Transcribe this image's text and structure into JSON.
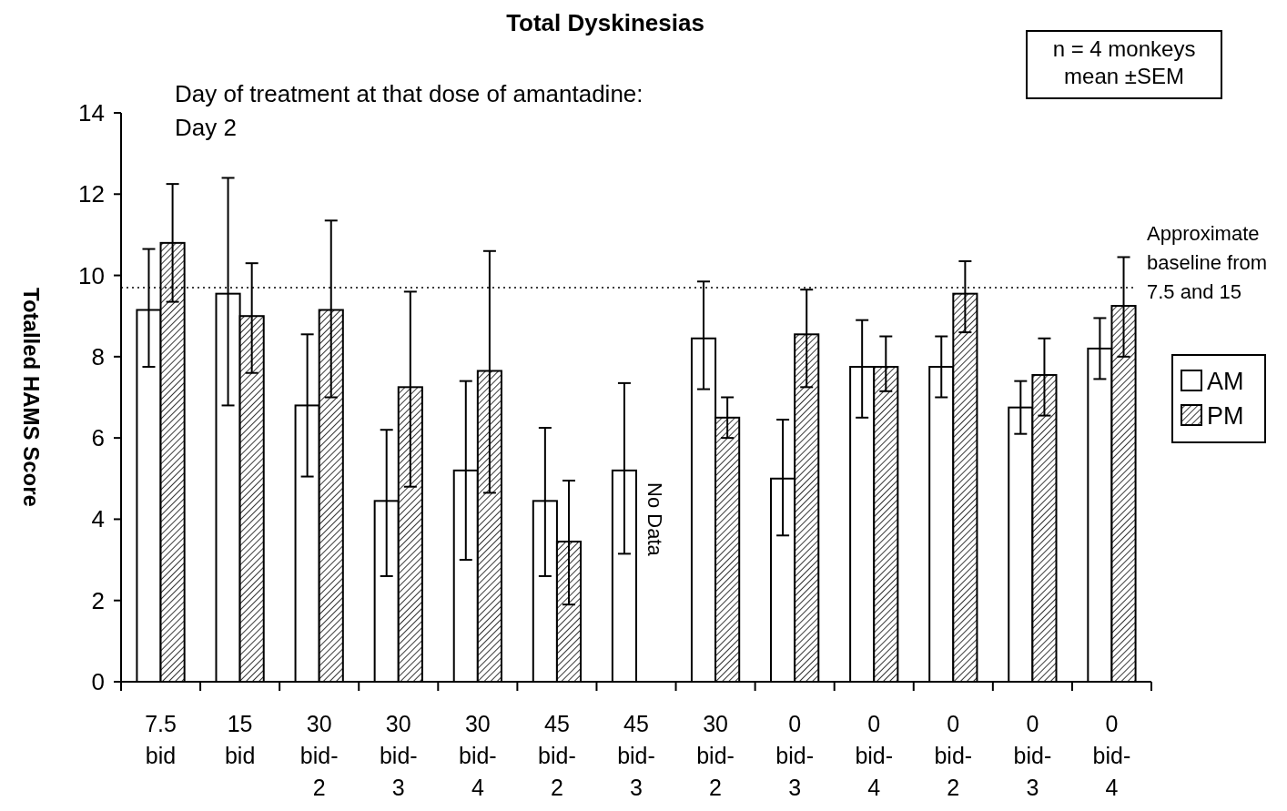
{
  "chart_data": {
    "type": "bar",
    "title": "Total Dyskinesias",
    "ylabel": "Totalled HAMS Score",
    "categories": [
      "7.5 bid",
      "15 bid",
      "30 bid-2",
      "30 bid-3",
      "30 bid-4",
      "45 bid-2",
      "45 bid-3",
      "30 bid-2",
      "0 bid-3",
      "0 bid-4",
      "0 bid-2",
      "0 bid-3",
      "0 bid-4"
    ],
    "series": [
      {
        "name": "AM",
        "color": "#ffffff",
        "values": [
          9.15,
          9.55,
          6.8,
          4.45,
          5.2,
          4.45,
          5.2,
          8.45,
          5.0,
          7.75,
          7.75,
          6.75,
          8.2
        ],
        "errors": [
          [
            7.75,
            10.65
          ],
          [
            6.8,
            12.4
          ],
          [
            5.05,
            8.55
          ],
          [
            2.6,
            6.2
          ],
          [
            3.0,
            7.4
          ],
          [
            2.6,
            6.25
          ],
          [
            3.15,
            7.35
          ],
          [
            7.2,
            9.85
          ],
          [
            3.6,
            6.45
          ],
          [
            6.5,
            8.9
          ],
          [
            7.0,
            8.5
          ],
          [
            6.1,
            7.4
          ],
          [
            7.45,
            8.95
          ]
        ]
      },
      {
        "name": "PM",
        "color": "#000000",
        "values": [
          10.8,
          9.0,
          9.15,
          7.25,
          7.65,
          3.45,
          null,
          6.5,
          8.55,
          7.75,
          9.55,
          7.55,
          9.25
        ],
        "errors": [
          [
            9.35,
            12.25
          ],
          [
            7.6,
            10.3
          ],
          [
            7.0,
            11.35
          ],
          [
            4.8,
            9.6
          ],
          [
            4.65,
            10.6
          ],
          [
            1.9,
            4.95
          ],
          null,
          [
            6.0,
            7.0
          ],
          [
            7.25,
            9.65
          ],
          [
            7.15,
            8.5
          ],
          [
            8.6,
            10.35
          ],
          [
            6.55,
            8.45
          ],
          [
            8.0,
            10.45
          ]
        ]
      }
    ],
    "ylim": [
      0,
      14
    ],
    "yticks": [
      0,
      2,
      4,
      6,
      8,
      10,
      12,
      14
    ],
    "grid": false,
    "legend": "right",
    "ref_lines": [
      {
        "axis": "y",
        "value": 9.7,
        "label": "Approximate\nbaseline from\n7.5 and 15",
        "line_style": "dotted"
      }
    ],
    "annotations": [
      "Day of treatment at that dose of amantadine:\nDay 2",
      {
        "text": "No Data",
        "x": "45 bid-3",
        "y": 4
      },
      "n = 4 monkeys\nmean ±SEM"
    ]
  }
}
